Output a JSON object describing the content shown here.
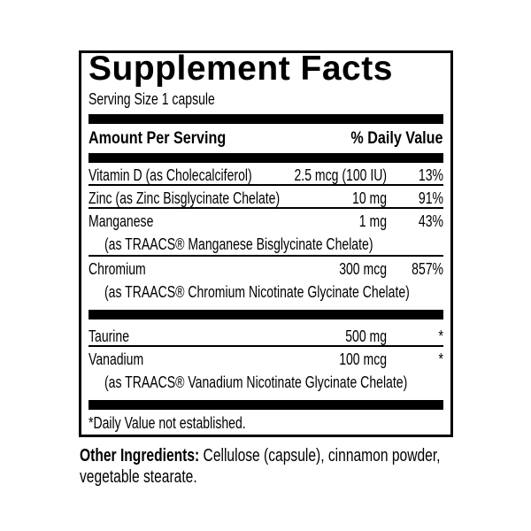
{
  "label": {
    "title": "Supplement Facts",
    "serving_size": "Serving Size 1 capsule",
    "columns": {
      "amount_header": "Amount Per Serving",
      "dv_header": "% Daily Value"
    },
    "rows": [
      {
        "name": "Vitamin D (as Cholecalciferol)",
        "amount": "2.5 mcg (100 IU)",
        "dv": "13%"
      },
      {
        "name": "Zinc (as Zinc Bisglycinate Chelate)",
        "amount": "10 mg",
        "dv": "91%"
      },
      {
        "name": "Manganese",
        "amount": "1 mg",
        "dv": "43%",
        "sub": "(as TRAACS® Manganese Bisglycinate Chelate)"
      },
      {
        "name": "Chromium",
        "amount": "300 mcg",
        "dv": "857%",
        "sub": "(as TRAACS® Chromium Nicotinate Glycinate Chelate)"
      },
      {
        "separator": true
      },
      {
        "name": "Taurine",
        "amount": "500 mg",
        "dv": "*"
      },
      {
        "name": "Vanadium",
        "amount": "100 mcg",
        "dv": "*",
        "sub": "(as TRAACS® Vanadium Nicotinate Glycinate Chelate)"
      }
    ],
    "footnote": "*Daily Value not established.",
    "other_ingredients": {
      "label": "Other Ingredients:",
      "text": " Cellulose (capsule), cinnamon powder, vegetable stearate."
    }
  },
  "colors": {
    "ink": "#000000",
    "background": "#ffffff"
  }
}
